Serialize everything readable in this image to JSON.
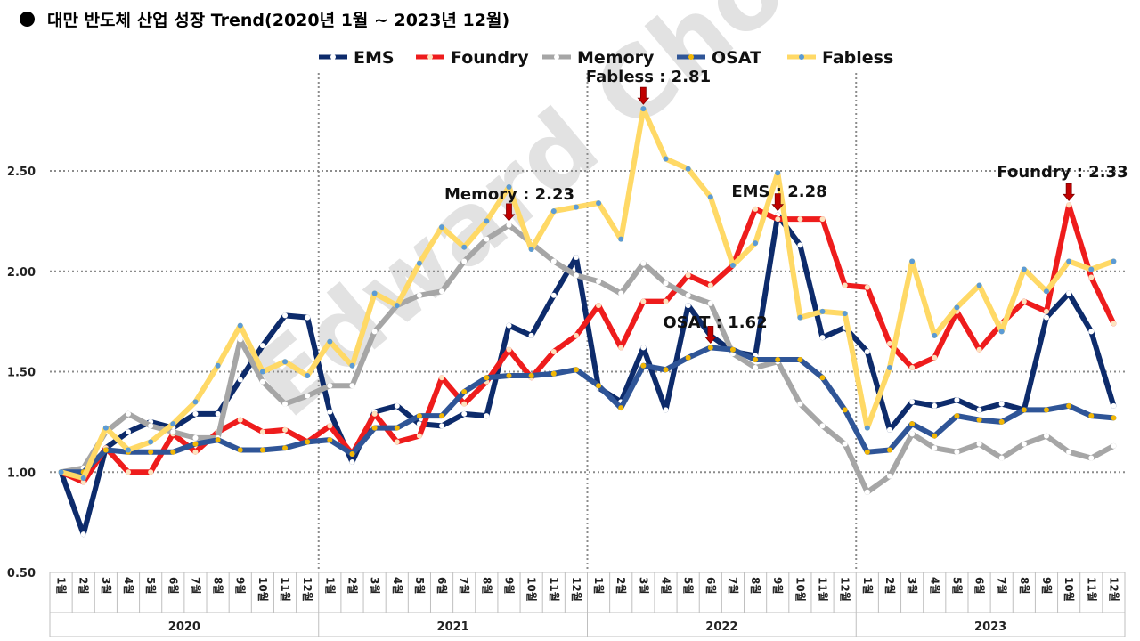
{
  "title": "대만 반도체 산업 성장 Trend(2020년 1월 ~ 2023년 12월)",
  "watermark": "Edward Choi",
  "chart_data": {
    "type": "line",
    "title": "대만 반도체 산업 성장 Trend(2020년 1월 ~ 2023년 12월)",
    "ylim": [
      0.5,
      3.0
    ],
    "yticks": [
      "0.50",
      "1.00",
      "1.50",
      "2.00",
      "2.50"
    ],
    "grid": "horizontal dotted",
    "legend": "top",
    "years": [
      "2020",
      "2021",
      "2022",
      "2023"
    ],
    "months": [
      "1월",
      "2월",
      "3월",
      "4월",
      "5월",
      "6월",
      "7월",
      "8월",
      "9월",
      "10월",
      "11월",
      "12월"
    ],
    "series": [
      {
        "name": "EMS",
        "color": "#0d2b6b",
        "marker": "#ffffff",
        "values": [
          1.0,
          0.69,
          1.12,
          1.2,
          1.25,
          1.22,
          1.29,
          1.29,
          1.46,
          1.63,
          1.78,
          1.77,
          1.3,
          1.05,
          1.3,
          1.33,
          1.24,
          1.23,
          1.29,
          1.28,
          1.73,
          1.68,
          1.88,
          2.07,
          1.42,
          1.35,
          1.62,
          1.31,
          1.83,
          1.68,
          1.6,
          1.58,
          2.28,
          2.13,
          1.67,
          1.72,
          1.6,
          1.21,
          1.35,
          1.33,
          1.36,
          1.31,
          1.34,
          1.31,
          1.77,
          1.89,
          1.7,
          1.33
        ]
      },
      {
        "name": "Foundry",
        "color": "#ee1c1c",
        "marker": "#fde3c0",
        "values": [
          1.0,
          0.95,
          1.12,
          1.0,
          1.0,
          1.19,
          1.1,
          1.2,
          1.26,
          1.2,
          1.21,
          1.15,
          1.23,
          1.09,
          1.29,
          1.15,
          1.18,
          1.47,
          1.34,
          1.45,
          1.61,
          1.47,
          1.6,
          1.68,
          1.83,
          1.62,
          1.85,
          1.85,
          1.98,
          1.93,
          2.03,
          2.31,
          2.26,
          2.26,
          2.26,
          1.93,
          1.92,
          1.64,
          1.52,
          1.57,
          1.8,
          1.61,
          1.74,
          1.85,
          1.8,
          2.33,
          1.97,
          1.74
        ]
      },
      {
        "name": "Memory",
        "color": "#a6a6a6",
        "marker": "#ffffff",
        "values": [
          1.0,
          1.02,
          1.2,
          1.29,
          1.23,
          1.2,
          1.17,
          1.17,
          1.66,
          1.45,
          1.34,
          1.38,
          1.43,
          1.43,
          1.7,
          1.83,
          1.88,
          1.9,
          2.05,
          2.16,
          2.23,
          2.14,
          2.05,
          1.98,
          1.95,
          1.89,
          2.04,
          1.94,
          1.88,
          1.84,
          1.59,
          1.52,
          1.55,
          1.34,
          1.23,
          1.14,
          0.9,
          0.98,
          1.19,
          1.12,
          1.1,
          1.14,
          1.07,
          1.14,
          1.18,
          1.1,
          1.07,
          1.13
        ]
      },
      {
        "name": "OSAT",
        "color": "#2f5597",
        "marker": "#f2b705",
        "values": [
          1.0,
          1.0,
          1.11,
          1.1,
          1.1,
          1.1,
          1.14,
          1.16,
          1.11,
          1.11,
          1.12,
          1.15,
          1.16,
          1.09,
          1.22,
          1.22,
          1.28,
          1.28,
          1.4,
          1.47,
          1.48,
          1.48,
          1.49,
          1.51,
          1.43,
          1.32,
          1.53,
          1.51,
          1.57,
          1.62,
          1.61,
          1.56,
          1.56,
          1.56,
          1.47,
          1.31,
          1.1,
          1.11,
          1.24,
          1.18,
          1.28,
          1.26,
          1.25,
          1.31,
          1.31,
          1.33,
          1.28,
          1.27
        ]
      },
      {
        "name": "Fabless",
        "color": "#ffd966",
        "marker": "#5b9bd5",
        "values": [
          1.0,
          0.97,
          1.22,
          1.11,
          1.15,
          1.24,
          1.35,
          1.53,
          1.73,
          1.5,
          1.55,
          1.48,
          1.65,
          1.53,
          1.89,
          1.83,
          2.04,
          2.22,
          2.12,
          2.25,
          2.42,
          2.11,
          2.3,
          2.32,
          2.34,
          2.16,
          2.81,
          2.56,
          2.51,
          2.37,
          2.03,
          2.14,
          2.49,
          1.77,
          1.8,
          1.79,
          1.22,
          1.52,
          2.05,
          1.68,
          1.82,
          1.93,
          1.7,
          2.01,
          1.9,
          2.05,
          2.01,
          2.05
        ]
      }
    ],
    "annotations": [
      {
        "label": "Fabless : 2.81",
        "series": "Fabless",
        "index": 26
      },
      {
        "label": "Memory : 2.23",
        "series": "Memory",
        "index": 20
      },
      {
        "label": "EMS : 2.28",
        "series": "EMS",
        "index": 32
      },
      {
        "label": "OSAT : 1.62",
        "series": "OSAT",
        "index": 29
      },
      {
        "label": "Foundry : 2.33",
        "series": "Foundry",
        "index": 45
      }
    ]
  }
}
